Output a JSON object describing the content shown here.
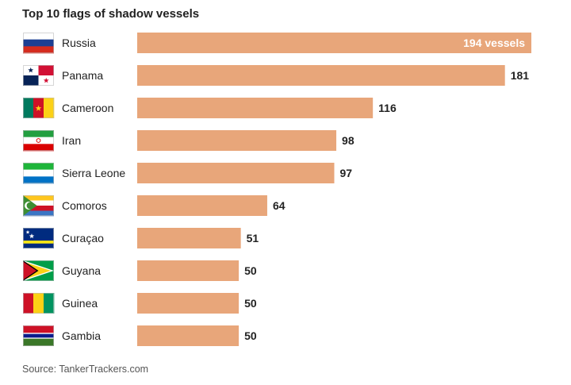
{
  "title": "Top 10 flags of shadow vessels",
  "source": "Source: TankerTrackers.com",
  "colors": {
    "bar": "#e8a67a",
    "text": "#222222",
    "source_text": "#555555"
  },
  "chart_data": {
    "type": "bar",
    "orientation": "horizontal",
    "title": "Top 10 flags of shadow vessels",
    "categories": [
      "Russia",
      "Panama",
      "Cameroon",
      "Iran",
      "Sierra Leone",
      "Comoros",
      "Curaçao",
      "Guyana",
      "Guinea",
      "Gambia"
    ],
    "values": [
      194,
      181,
      116,
      98,
      97,
      64,
      51,
      50,
      50,
      50
    ],
    "value_labels": [
      "194 vessels",
      "181",
      "116",
      "98",
      "97",
      "64",
      "51",
      "50",
      "50",
      "50"
    ],
    "flag_icons": [
      "russia-flag-icon",
      "panama-flag-icon",
      "cameroon-flag-icon",
      "iran-flag-icon",
      "sierra-leone-flag-icon",
      "comoros-flag-icon",
      "curacao-flag-icon",
      "guyana-flag-icon",
      "guinea-flag-icon",
      "gambia-flag-icon"
    ],
    "xlim": [
      0,
      194
    ],
    "grid": false,
    "legend": false
  }
}
